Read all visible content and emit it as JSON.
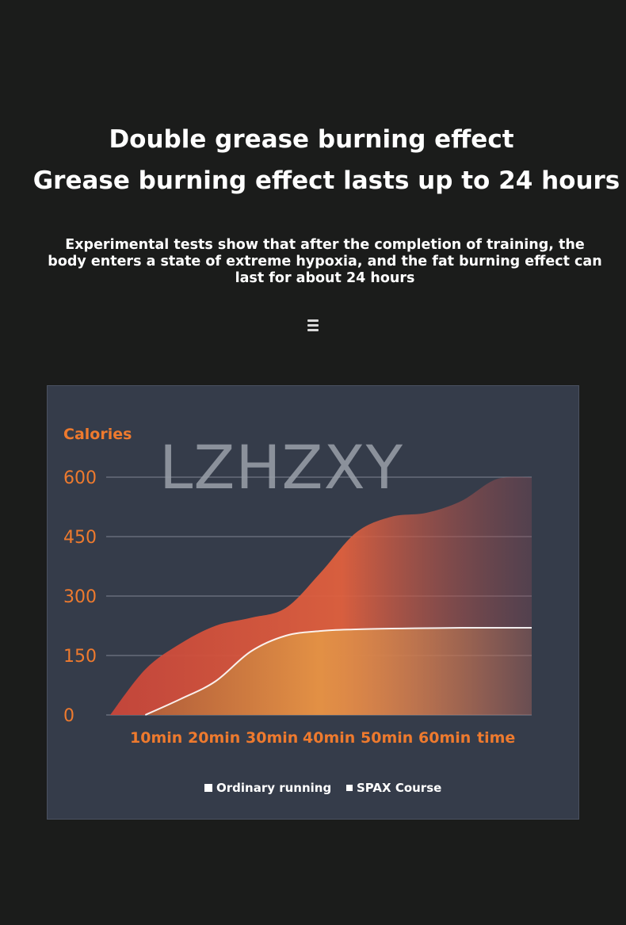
{
  "header": {
    "title_line1": "Double grease burning effect",
    "title_line2": "Grease burning effect lasts up to 24 hours",
    "description": "Experimental tests show that after the completion of training, the body enters a state of extreme hypoxia, and the fat burning effect can last for about 24 hours",
    "divider_icon": "menu-lines-icon"
  },
  "watermark": "LZHZXY",
  "colors": {
    "background": "#1b1c1b",
    "panel": "#353c4a",
    "accent_orange": "#ee7a2e",
    "spax_area": "#e05a3e",
    "running_area": "#d9883e"
  },
  "chart_data": {
    "type": "area",
    "ylabel": "Calories",
    "xlabel": "time",
    "yticks": [
      0,
      150,
      300,
      450,
      600
    ],
    "ylim": [
      0,
      600
    ],
    "categories": [
      "10min",
      "20min",
      "30min",
      "40min",
      "50min",
      "60min"
    ],
    "x_axis_text": [
      "10min",
      "20min",
      "30min",
      "40min",
      "50min",
      "60min",
      "time"
    ],
    "grid": true,
    "legend_position": "bottom",
    "legend": [
      "Ordinary running",
      "SPAX Course"
    ],
    "series": [
      {
        "name": "SPAX Course",
        "x": [
          0,
          5,
          10,
          15,
          20,
          25,
          30,
          35,
          40,
          45,
          50,
          55,
          60
        ],
        "values": [
          0,
          115,
          180,
          225,
          245,
          270,
          360,
          460,
          500,
          510,
          540,
          595,
          600
        ]
      },
      {
        "name": "Ordinary running",
        "x": [
          5,
          10,
          15,
          20,
          25,
          30,
          35,
          40,
          45,
          50,
          55,
          60
        ],
        "values": [
          0,
          40,
          85,
          160,
          200,
          212,
          216,
          218,
          219,
          220,
          220,
          220
        ]
      }
    ]
  }
}
